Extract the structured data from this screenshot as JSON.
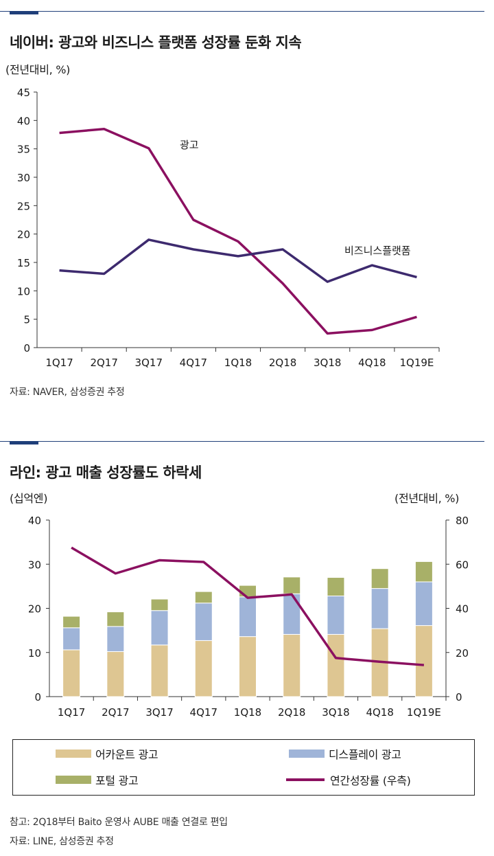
{
  "chart1": {
    "title": "네이버: 광고와 비즈니스 플랫폼 성장률 둔화 지속",
    "unit": "(전년대비, %)",
    "source": "자료: NAVER, 삼성증권 추정",
    "labels": {
      "ad": "광고",
      "biz": "비즈니스플랫폼"
    }
  },
  "chart2": {
    "title": "라인: 광고 매출 성장률도 하락세",
    "unit_left": "(십억엔)",
    "unit_right": "(전년대비, %)",
    "note": "참고: 2Q18부터 Baito 운영사 AUBE 매출 연결로 편입",
    "source": "자료: LINE, 삼성증권 추정",
    "legend": {
      "account": "어카운트 광고",
      "display": "디스플레이 광고",
      "portal": "포털 광고",
      "growth": "연간성장률 (우측)"
    }
  },
  "colors": {
    "ad_line": "#8b1060",
    "biz_line": "#3d2a6e",
    "account": "#dec692",
    "display": "#9fb4d8",
    "portal": "#a8b068",
    "growth": "#8b1060",
    "axis": "#333333"
  },
  "chart_data": [
    {
      "type": "line",
      "categories": [
        "1Q17",
        "2Q17",
        "3Q17",
        "4Q17",
        "1Q18",
        "2Q18",
        "3Q18",
        "4Q18",
        "1Q19E"
      ],
      "series": [
        {
          "name": "광고",
          "values": [
            37.8,
            38.5,
            35.1,
            22.5,
            18.7,
            11.3,
            2.5,
            3.1,
            5.4
          ]
        },
        {
          "name": "비즈니스플랫폼",
          "values": [
            13.6,
            13.0,
            19.0,
            17.3,
            16.1,
            17.3,
            11.6,
            14.5,
            12.4
          ]
        }
      ],
      "ylim": [
        0,
        45
      ],
      "yticks": [
        0,
        5,
        10,
        15,
        20,
        25,
        30,
        35,
        40,
        45
      ]
    },
    {
      "type": "bar",
      "stacked": true,
      "categories": [
        "1Q17",
        "2Q17",
        "3Q17",
        "4Q17",
        "1Q18",
        "2Q18",
        "3Q18",
        "4Q18",
        "1Q19E"
      ],
      "series": [
        {
          "name": "어카운트 광고",
          "values": [
            10.6,
            10.2,
            11.7,
            12.7,
            13.6,
            14.1,
            14.1,
            15.4,
            16.1
          ]
        },
        {
          "name": "디스플레이 광고",
          "values": [
            5.0,
            5.7,
            7.8,
            8.5,
            9.0,
            9.2,
            8.7,
            9.1,
            9.9
          ]
        },
        {
          "name": "포털 광고",
          "values": [
            2.6,
            3.3,
            2.6,
            2.6,
            2.6,
            3.8,
            4.2,
            4.5,
            4.6
          ]
        }
      ],
      "line_series": {
        "name": "연간성장률 (우측)",
        "axis": "right",
        "values": [
          67.5,
          55.8,
          61.8,
          61.0,
          44.8,
          46.3,
          17.5,
          15.8,
          14.3
        ]
      },
      "ylim": [
        0,
        40
      ],
      "yticks": [
        0,
        10,
        20,
        30,
        40
      ],
      "y2lim": [
        0,
        80
      ],
      "y2ticks": [
        0,
        20,
        40,
        60,
        80
      ]
    }
  ]
}
